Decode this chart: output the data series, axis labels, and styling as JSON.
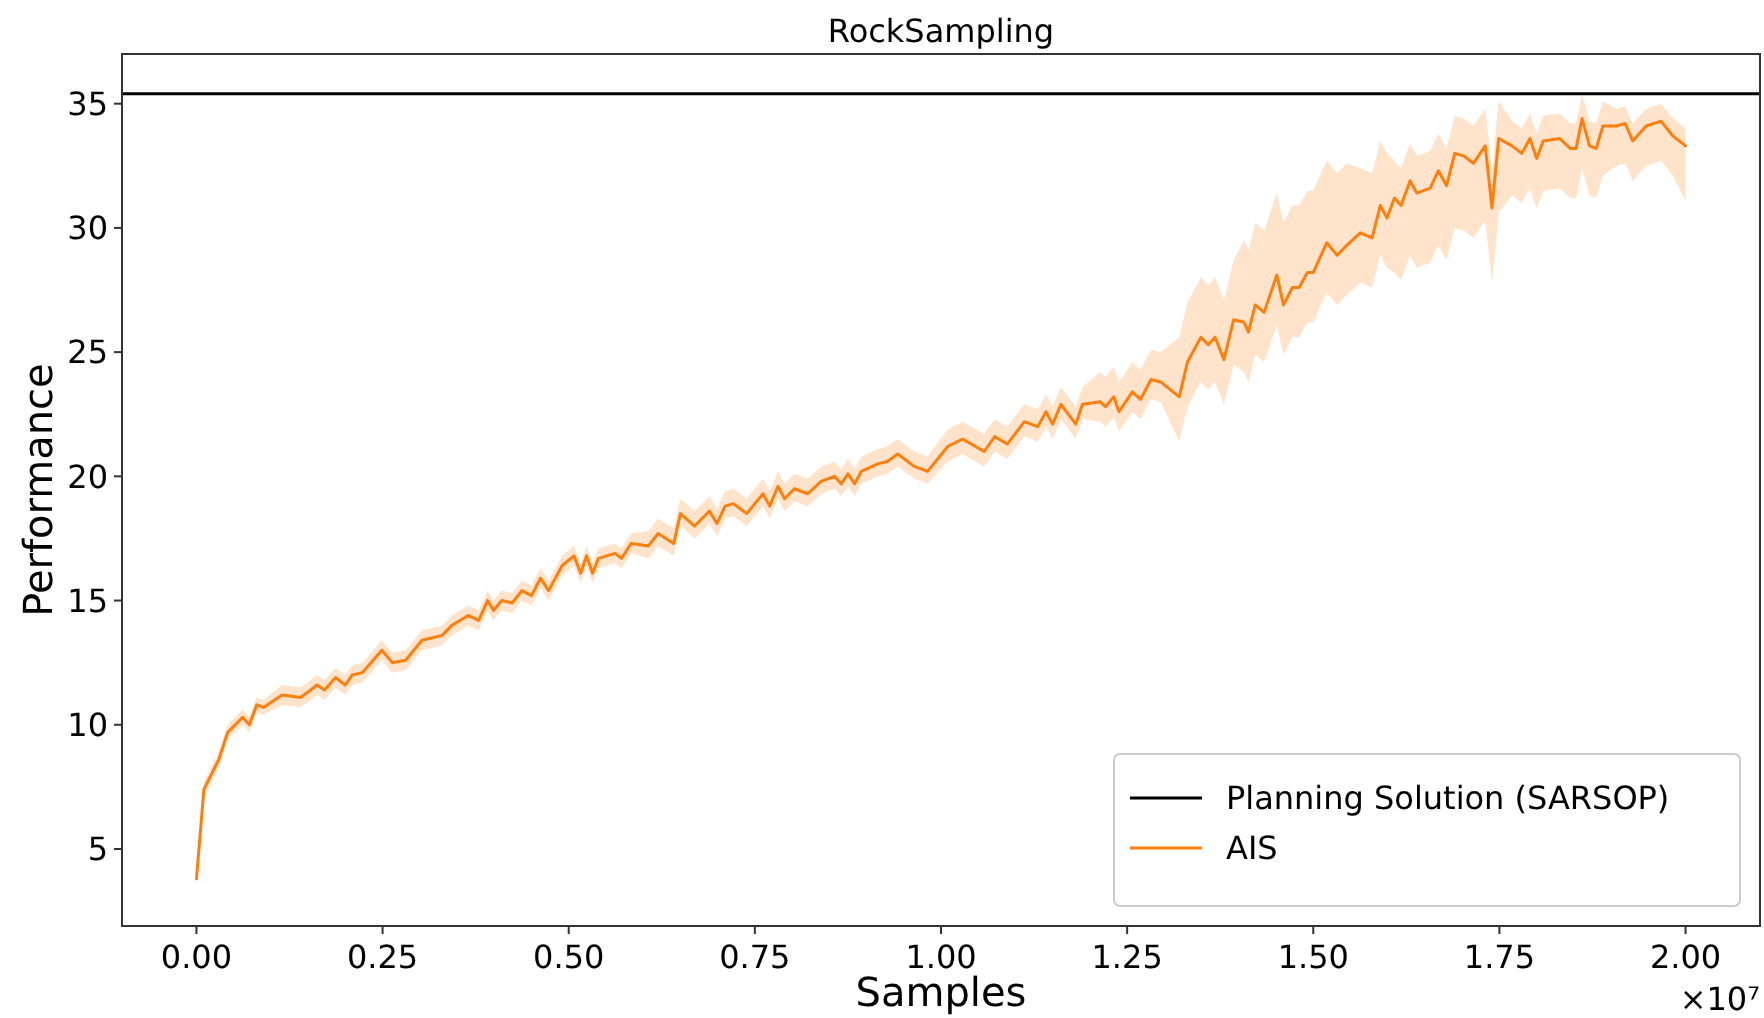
{
  "chart_data": {
    "type": "line",
    "title": "RockSampling",
    "xlabel": "Samples",
    "ylabel": "Performance",
    "annotations": [
      "×10⁷"
    ],
    "xlim": [
      -0.1,
      2.1
    ],
    "ylim": [
      1.9,
      37.0
    ],
    "xticks": [
      {
        "value": 0,
        "label": "0.00"
      },
      {
        "value": 0.25,
        "label": "0.25"
      },
      {
        "value": 0.5,
        "label": "0.50"
      },
      {
        "value": 0.75,
        "label": "0.75"
      },
      {
        "value": 1,
        "label": "1.00"
      },
      {
        "value": 1.25,
        "label": "1.25"
      },
      {
        "value": 1.5,
        "label": "1.50"
      },
      {
        "value": 1.75,
        "label": "1.75"
      },
      {
        "value": 2,
        "label": "2.00"
      }
    ],
    "yticks": [
      5,
      10,
      15,
      20,
      25,
      30,
      35
    ],
    "grid": false,
    "legend": "bottom right",
    "marker": "none",
    "line_style": "solid",
    "ref_lines": [
      {
        "axis": "y",
        "value": 35.4,
        "label": "Planning Solution (SARSOP)",
        "color": "#000000"
      }
    ],
    "series": [
      {
        "name": "AIS",
        "color": "#ff7f0e",
        "x": [
          0,
          0.01,
          0.03,
          0.042,
          0.062,
          0.071,
          0.081,
          0.09,
          0.115,
          0.14,
          0.162,
          0.172,
          0.187,
          0.2,
          0.209,
          0.223,
          0.249,
          0.263,
          0.281,
          0.303,
          0.33,
          0.343,
          0.365,
          0.379,
          0.391,
          0.399,
          0.41,
          0.424,
          0.437,
          0.45,
          0.462,
          0.473,
          0.491,
          0.507,
          0.516,
          0.524,
          0.532,
          0.54,
          0.562,
          0.571,
          0.584,
          0.607,
          0.62,
          0.641,
          0.65,
          0.669,
          0.689,
          0.699,
          0.71,
          0.721,
          0.739,
          0.761,
          0.77,
          0.781,
          0.79,
          0.803,
          0.821,
          0.839,
          0.857,
          0.866,
          0.875,
          0.884,
          0.893,
          0.915,
          0.928,
          0.942,
          0.964,
          0.982,
          1.009,
          1.029,
          1.058,
          1.072,
          1.089,
          1.112,
          1.13,
          1.141,
          1.15,
          1.161,
          1.181,
          1.19,
          1.214,
          1.221,
          1.232,
          1.239,
          1.257,
          1.268,
          1.282,
          1.295,
          1.32,
          1.331,
          1.349,
          1.359,
          1.368,
          1.38,
          1.393,
          1.407,
          1.413,
          1.422,
          1.434,
          1.451,
          1.46,
          1.472,
          1.481,
          1.492,
          1.5,
          1.518,
          1.532,
          1.545,
          1.563,
          1.579,
          1.59,
          1.599,
          1.609,
          1.618,
          1.63,
          1.639,
          1.657,
          1.668,
          1.679,
          1.69,
          1.702,
          1.715,
          1.731,
          1.74,
          1.749,
          1.767,
          1.78,
          1.791,
          1.8,
          1.809,
          1.831,
          1.845,
          1.853,
          1.861,
          1.871,
          1.88,
          1.889,
          1.907,
          1.919,
          1.929,
          1.947,
          1.967,
          1.983,
          2.0
        ],
        "values": [
          3.8,
          7.4,
          8.6,
          9.7,
          10.3,
          10.0,
          10.8,
          10.7,
          11.2,
          11.1,
          11.6,
          11.4,
          11.9,
          11.6,
          12.0,
          12.1,
          13.0,
          12.5,
          12.6,
          13.4,
          13.6,
          14.0,
          14.4,
          14.2,
          15.0,
          14.6,
          15.0,
          14.9,
          15.4,
          15.2,
          15.9,
          15.4,
          16.4,
          16.8,
          16.1,
          16.8,
          16.1,
          16.7,
          16.9,
          16.7,
          17.3,
          17.2,
          17.7,
          17.3,
          18.5,
          18.0,
          18.6,
          18.1,
          18.8,
          18.9,
          18.5,
          19.3,
          18.8,
          19.6,
          19.1,
          19.5,
          19.3,
          19.8,
          20.0,
          19.7,
          20.1,
          19.7,
          20.2,
          20.5,
          20.6,
          20.9,
          20.4,
          20.2,
          21.2,
          21.5,
          21.0,
          21.6,
          21.3,
          22.2,
          22.0,
          22.6,
          22.1,
          22.9,
          22.1,
          22.9,
          23.0,
          22.8,
          23.2,
          22.6,
          23.4,
          23.1,
          23.9,
          23.8,
          23.2,
          24.6,
          25.6,
          25.3,
          25.6,
          24.7,
          26.3,
          26.2,
          25.8,
          26.9,
          26.6,
          28.1,
          26.9,
          27.6,
          27.6,
          28.2,
          28.2,
          29.4,
          28.9,
          29.3,
          29.8,
          29.6,
          30.9,
          30.4,
          31.2,
          30.9,
          31.9,
          31.4,
          31.6,
          32.3,
          31.7,
          33.0,
          32.9,
          32.6,
          33.3,
          30.8,
          33.6,
          33.3,
          33.0,
          33.6,
          32.8,
          33.5,
          33.6,
          33.2,
          33.2,
          34.4,
          33.3,
          33.2,
          34.1,
          34.1,
          34.2,
          33.5,
          34.1,
          34.3,
          33.7,
          33.3
        ],
        "lower": [
          3.6,
          7.1,
          8.3,
          9.4,
          10.0,
          9.7,
          10.5,
          10.4,
          10.8,
          10.7,
          11.2,
          11.0,
          11.5,
          11.2,
          11.6,
          11.7,
          12.6,
          12.1,
          12.2,
          13.0,
          13.2,
          13.6,
          14.0,
          13.8,
          14.6,
          14.2,
          14.6,
          14.5,
          15.0,
          14.8,
          15.5,
          15.0,
          16.0,
          16.4,
          15.7,
          16.4,
          15.7,
          16.3,
          16.5,
          16.3,
          16.9,
          16.7,
          17.2,
          16.8,
          18.0,
          17.5,
          18.1,
          17.6,
          18.3,
          18.4,
          18.0,
          18.8,
          18.3,
          19.1,
          18.6,
          19.0,
          18.8,
          19.3,
          19.5,
          19.2,
          19.6,
          19.2,
          19.7,
          20.0,
          20.1,
          20.4,
          19.9,
          19.7,
          20.6,
          20.9,
          20.4,
          21.0,
          20.7,
          21.6,
          21.4,
          22.0,
          21.5,
          22.3,
          21.5,
          22.3,
          22.2,
          22.0,
          22.4,
          21.8,
          22.6,
          22.3,
          23.1,
          23.0,
          21.4,
          22.8,
          23.8,
          23.5,
          23.8,
          22.9,
          24.5,
          24.2,
          23.8,
          24.9,
          24.6,
          26.1,
          24.9,
          25.6,
          25.6,
          26.2,
          26.2,
          27.4,
          26.9,
          27.3,
          27.8,
          27.6,
          28.9,
          28.4,
          28.2,
          27.9,
          28.9,
          28.4,
          28.6,
          29.3,
          28.7,
          30.0,
          29.9,
          29.6,
          30.3,
          27.8,
          30.6,
          31.3,
          31.0,
          31.6,
          30.8,
          31.5,
          31.6,
          31.2,
          31.2,
          32.4,
          31.3,
          31.2,
          32.1,
          32.5,
          32.6,
          31.9,
          32.5,
          32.7,
          32.1,
          31.1
        ],
        "upper": [
          4.0,
          7.7,
          8.9,
          10.0,
          10.6,
          10.3,
          11.1,
          11.0,
          11.6,
          11.5,
          12.0,
          11.8,
          12.3,
          12.0,
          12.4,
          12.5,
          13.4,
          12.9,
          13.0,
          13.8,
          14.0,
          14.4,
          14.8,
          14.6,
          15.4,
          15.0,
          15.4,
          15.3,
          15.8,
          15.6,
          16.3,
          15.8,
          16.8,
          17.2,
          16.5,
          17.2,
          16.5,
          17.1,
          17.3,
          17.1,
          17.7,
          17.8,
          18.3,
          17.9,
          19.1,
          18.6,
          19.2,
          18.7,
          19.4,
          19.5,
          19.1,
          19.9,
          19.4,
          20.2,
          19.7,
          20.1,
          19.9,
          20.4,
          20.6,
          20.3,
          20.7,
          20.3,
          20.8,
          21.1,
          21.2,
          21.5,
          21.0,
          20.8,
          21.9,
          22.2,
          21.7,
          22.3,
          22.0,
          22.9,
          22.7,
          23.3,
          22.8,
          23.6,
          22.8,
          23.6,
          24.2,
          24.0,
          24.4,
          23.8,
          24.6,
          24.3,
          25.1,
          25.0,
          25.6,
          27.0,
          28.0,
          27.7,
          28.0,
          27.1,
          28.7,
          29.5,
          29.1,
          30.2,
          29.9,
          31.4,
          30.2,
          30.9,
          30.9,
          31.5,
          31.5,
          32.7,
          32.2,
          32.6,
          32.4,
          32.2,
          33.5,
          33.0,
          32.7,
          32.4,
          33.4,
          32.9,
          33.1,
          33.8,
          33.2,
          34.5,
          34.4,
          34.1,
          34.8,
          32.3,
          35.1,
          34.3,
          34.0,
          34.6,
          33.8,
          34.5,
          34.6,
          34.2,
          34.2,
          35.4,
          34.3,
          34.2,
          35.1,
          34.8,
          34.9,
          34.2,
          34.8,
          35.0,
          34.4,
          34.0
        ]
      }
    ]
  }
}
